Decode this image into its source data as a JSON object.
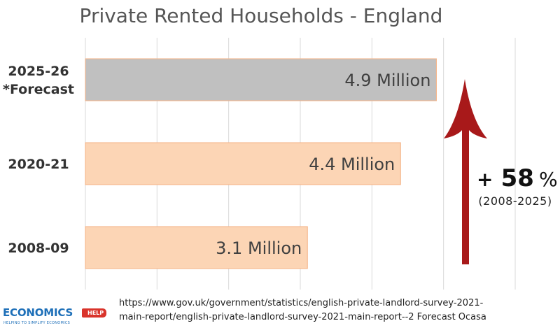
{
  "chart_data": {
    "type": "bar",
    "orientation": "horizontal",
    "title": "Private Rented Households - England",
    "categories": [
      [
        "2025-26",
        "*Forecast"
      ],
      [
        "2020-21"
      ],
      [
        "2008-09"
      ]
    ],
    "values": [
      4.9,
      4.4,
      3.1
    ],
    "value_labels": [
      "4.9 Million",
      "4.4 Million",
      "3.1 Million"
    ],
    "unit": "Million",
    "xlim": [
      0,
      6
    ],
    "grid": true,
    "bar_colors": [
      "#c0c0c0",
      "#fcd5b5",
      "#fcd5b5"
    ],
    "bar_edge_color": "#f4b183",
    "annotation": {
      "plus": "+",
      "percent_value": "58",
      "percent_sign": "%",
      "range": "(2008-2025)",
      "arrow_color": "#a8191a"
    }
  },
  "source": {
    "line1": "https://www.gov.uk/government/statistics/english-private-landlord-survey-2021-",
    "line2": "main-report/english-private-landlord-survey-2021-main-report--2 Forecast Ocasa"
  },
  "logo": {
    "main": "ECONOMICS",
    "tag": "HELP",
    "sub": "HELPING TO SIMPLIFY ECONOMICS"
  }
}
